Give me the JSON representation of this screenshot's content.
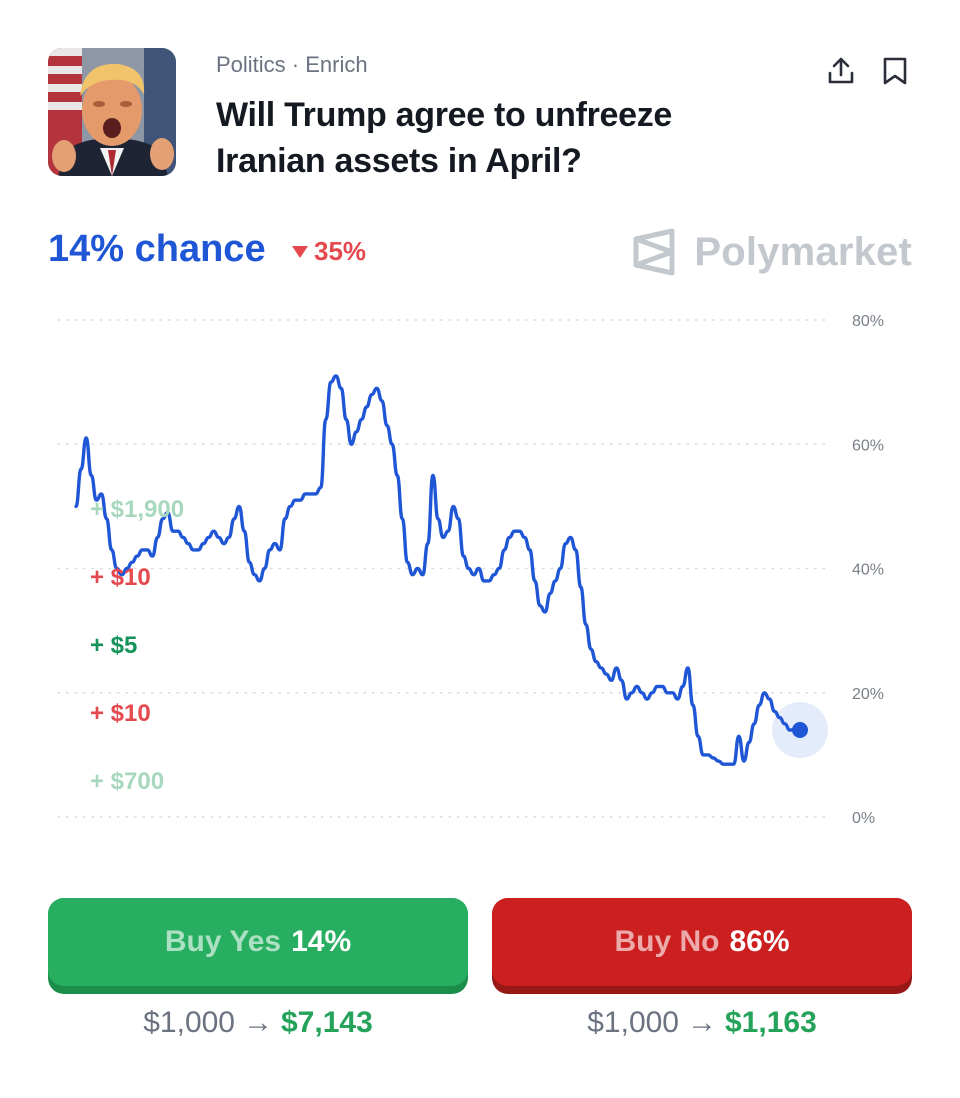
{
  "market": {
    "category": "Politics · Enrich",
    "title": "Will Trump agree to unfreeze Iranian assets in April?"
  },
  "icons": {
    "share": "share-upload-icon",
    "bookmark": "bookmark-icon",
    "brand": "polymarket-logo-icon",
    "change": "triangle-down-icon"
  },
  "summary": {
    "chance": "14% chance",
    "change": "35%",
    "change_direction": "down"
  },
  "brand": {
    "name": "Polymarket"
  },
  "colors": {
    "accent": "#1f56d6",
    "down": "#e5484d",
    "yes": "#27ae60",
    "no": "#cc2020",
    "brand_gray": "#c3c7ce"
  },
  "trades": [
    {
      "text": "+ $1,900",
      "color": "#a7d8bd"
    },
    {
      "text": "+ $10",
      "color": "#e5484d"
    },
    {
      "text": "+ $5",
      "color": "#14935a"
    },
    {
      "text": "+ $10",
      "color": "#e5484d"
    },
    {
      "text": "+ $700",
      "color": "#a7d8bd"
    }
  ],
  "chart_data": {
    "type": "line",
    "yticks": [
      "0%",
      "20%",
      "40%",
      "60%",
      "80%"
    ],
    "ylim": [
      0,
      80
    ],
    "grid": true,
    "series": [
      {
        "color": "#1f56d6",
        "values": [
          50,
          56,
          61,
          55,
          51,
          52,
          48,
          43,
          40,
          39,
          40,
          41,
          42,
          43,
          43,
          42,
          45,
          48,
          49,
          46,
          46,
          45,
          44,
          43,
          43,
          44,
          45,
          46,
          45,
          44,
          45,
          48,
          50,
          46,
          41,
          39,
          38,
          40,
          43,
          44,
          43,
          48,
          50,
          51,
          51,
          52,
          52,
          52,
          53,
          64,
          70,
          71,
          69,
          64,
          60,
          62,
          64,
          66,
          68,
          69,
          67,
          63,
          60,
          55,
          48,
          41,
          39,
          40,
          39,
          44,
          55,
          48,
          45,
          46,
          50,
          48,
          42,
          40,
          39,
          40,
          38,
          38,
          39,
          40,
          43,
          45,
          46,
          46,
          45,
          43,
          38,
          34,
          33,
          36,
          38,
          40,
          44,
          45,
          43,
          37,
          31,
          27,
          25,
          24,
          23,
          22,
          24,
          22,
          19,
          20,
          21,
          20,
          19,
          20,
          21,
          21,
          20,
          20,
          19,
          21,
          24,
          18,
          13,
          10,
          10,
          9.5,
          9,
          8.5,
          8.5,
          8.5,
          13,
          9,
          12,
          15,
          18,
          20,
          19,
          17,
          16,
          15,
          14,
          14,
          14
        ]
      }
    ]
  },
  "buy_yes": {
    "label": "Buy Yes",
    "pct": "14%",
    "from": "$1,000",
    "arrow": "→",
    "to": "$7,143"
  },
  "buy_no": {
    "label": "Buy No",
    "pct": "86%",
    "from": "$1,000",
    "arrow": "→",
    "to": "$1,163"
  }
}
